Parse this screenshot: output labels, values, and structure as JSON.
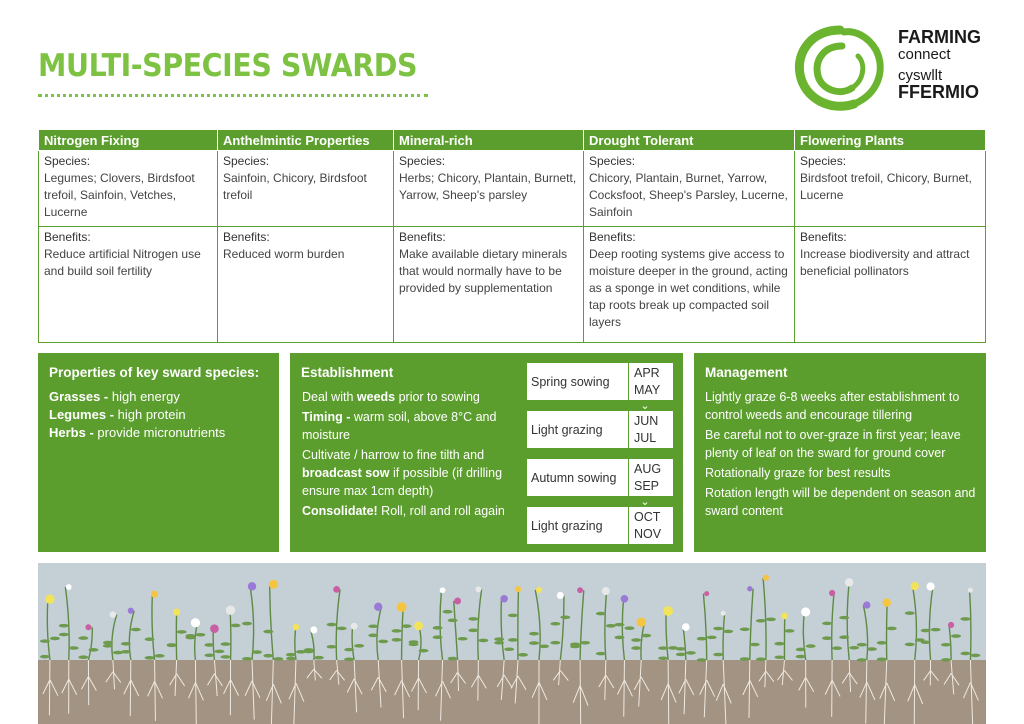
{
  "title": "MULTI-SPECIES SWARDS",
  "logo": {
    "line1": "FARMING",
    "line2": "connect",
    "line3": "cyswllt",
    "line4": "FFERMIO"
  },
  "table": {
    "headers": [
      "Nitrogen Fixing",
      "Anthelmintic Properties",
      "Mineral-rich",
      "Drought Tolerant",
      "Flowering Plants"
    ],
    "species_label": "Species:",
    "benefits_label": "Benefits:",
    "species": [
      "Legumes; Clovers, Birdsfoot trefoil, Sainfoin, Vetches, Lucerne",
      "Sainfoin, Chicory, Birdsfoot trefoil",
      "Herbs; Chicory, Plantain, Burnett, Yarrow, Sheep's parsley",
      "Chicory, Plantain, Burnet, Yarrow, Cocksfoot, Sheep's Parsley, Lucerne, Sainfoin",
      "Birdsfoot trefoil, Chicory, Burnet, Lucerne"
    ],
    "benefits": [
      "Reduce artificial Nitrogen use and build soil fertility",
      "Reduced worm burden",
      "Make available dietary minerals that would normally have to be provided by supplementation",
      "Deep rooting systems give access to moisture deeper in the ground, acting as a sponge in wet conditions, while tap roots break up compacted soil layers",
      "Increase biodiversity and attract beneficial pollinators"
    ]
  },
  "properties": {
    "heading": "Properties of key sward species:",
    "items": [
      {
        "name": "Grasses -",
        "value": " high energy"
      },
      {
        "name": "Legumes -",
        "value": " high protein"
      },
      {
        "name": "Herbs -",
        "value": " provide micronutrients"
      }
    ]
  },
  "establishment": {
    "heading": "Establishment",
    "p1_a": "Deal with ",
    "p1_b": "weeds",
    "p1_c": " prior to sowing",
    "p2_a": "Timing -",
    "p2_b": " warm soil, above 8°C and moisture",
    "p3_a": "Cultivate / harrow to fine tilth and ",
    "p3_b": "broadcast sow",
    "p3_c": " if possible (if drilling ensure max 1cm depth)",
    "p4_a": "Consolidate!",
    "p4_b": " Roll, roll and roll again",
    "schedule": [
      {
        "label": "Spring sowing",
        "m1": "APR",
        "m2": "MAY"
      },
      {
        "label": "Light grazing",
        "m1": "JUN",
        "m2": "JUL"
      },
      {
        "label": "Autumn sowing",
        "m1": "AUG",
        "m2": "SEP"
      },
      {
        "label": "Light grazing",
        "m1": "OCT",
        "m2": "NOV"
      }
    ]
  },
  "management": {
    "heading": "Management",
    "items": [
      "Lightly graze 6-8 weeks after establishment to control weeds and encourage tillering",
      "Be careful not to over-graze in first year; leave plenty of leaf on the sward for ground cover",
      "Rotationally graze for best results",
      "Rotation length will be dependent on season and sward content"
    ]
  },
  "colors": {
    "light_green": "#7dc242",
    "dark_green": "#5c9e2e",
    "sky": "#c4d0d6",
    "soil": "#a39382"
  }
}
